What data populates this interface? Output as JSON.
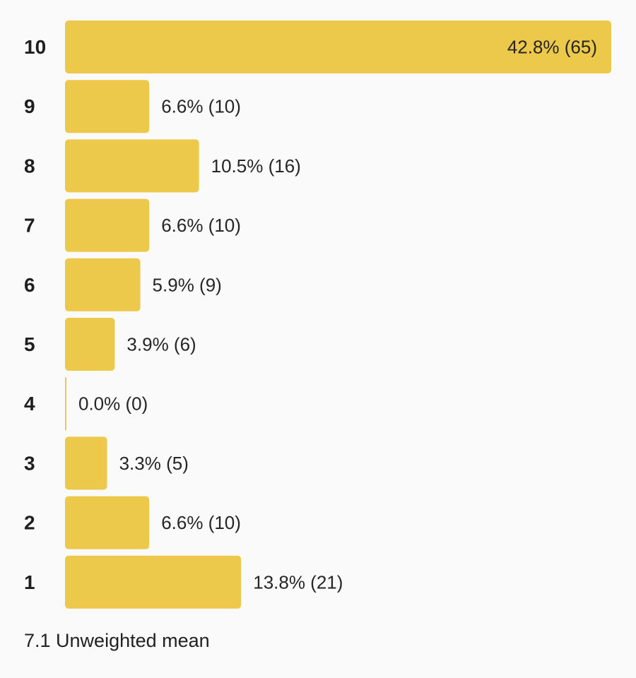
{
  "chart_data": {
    "type": "bar",
    "orientation": "horizontal",
    "categories": [
      "10",
      "9",
      "8",
      "7",
      "6",
      "5",
      "4",
      "3",
      "2",
      "1"
    ],
    "percents": [
      42.8,
      6.6,
      10.5,
      6.6,
      5.9,
      3.9,
      0.0,
      3.3,
      6.6,
      13.8
    ],
    "counts": [
      65,
      10,
      16,
      10,
      9,
      6,
      0,
      5,
      10,
      21
    ],
    "value_labels": [
      "42.8% (65)",
      "6.6% (10)",
      "10.5% (16)",
      "6.6% (10)",
      "5.9% (9)",
      "3.9% (6)",
      "0.0% (0)",
      "3.3% (5)",
      "6.6% (10)",
      "13.8% (21)"
    ],
    "bar_color": "#ecc94b",
    "title": "",
    "xlabel": "",
    "ylabel": "",
    "grid": false,
    "legend": "none"
  },
  "summary": {
    "mean_text": "7.1 Unweighted mean"
  }
}
